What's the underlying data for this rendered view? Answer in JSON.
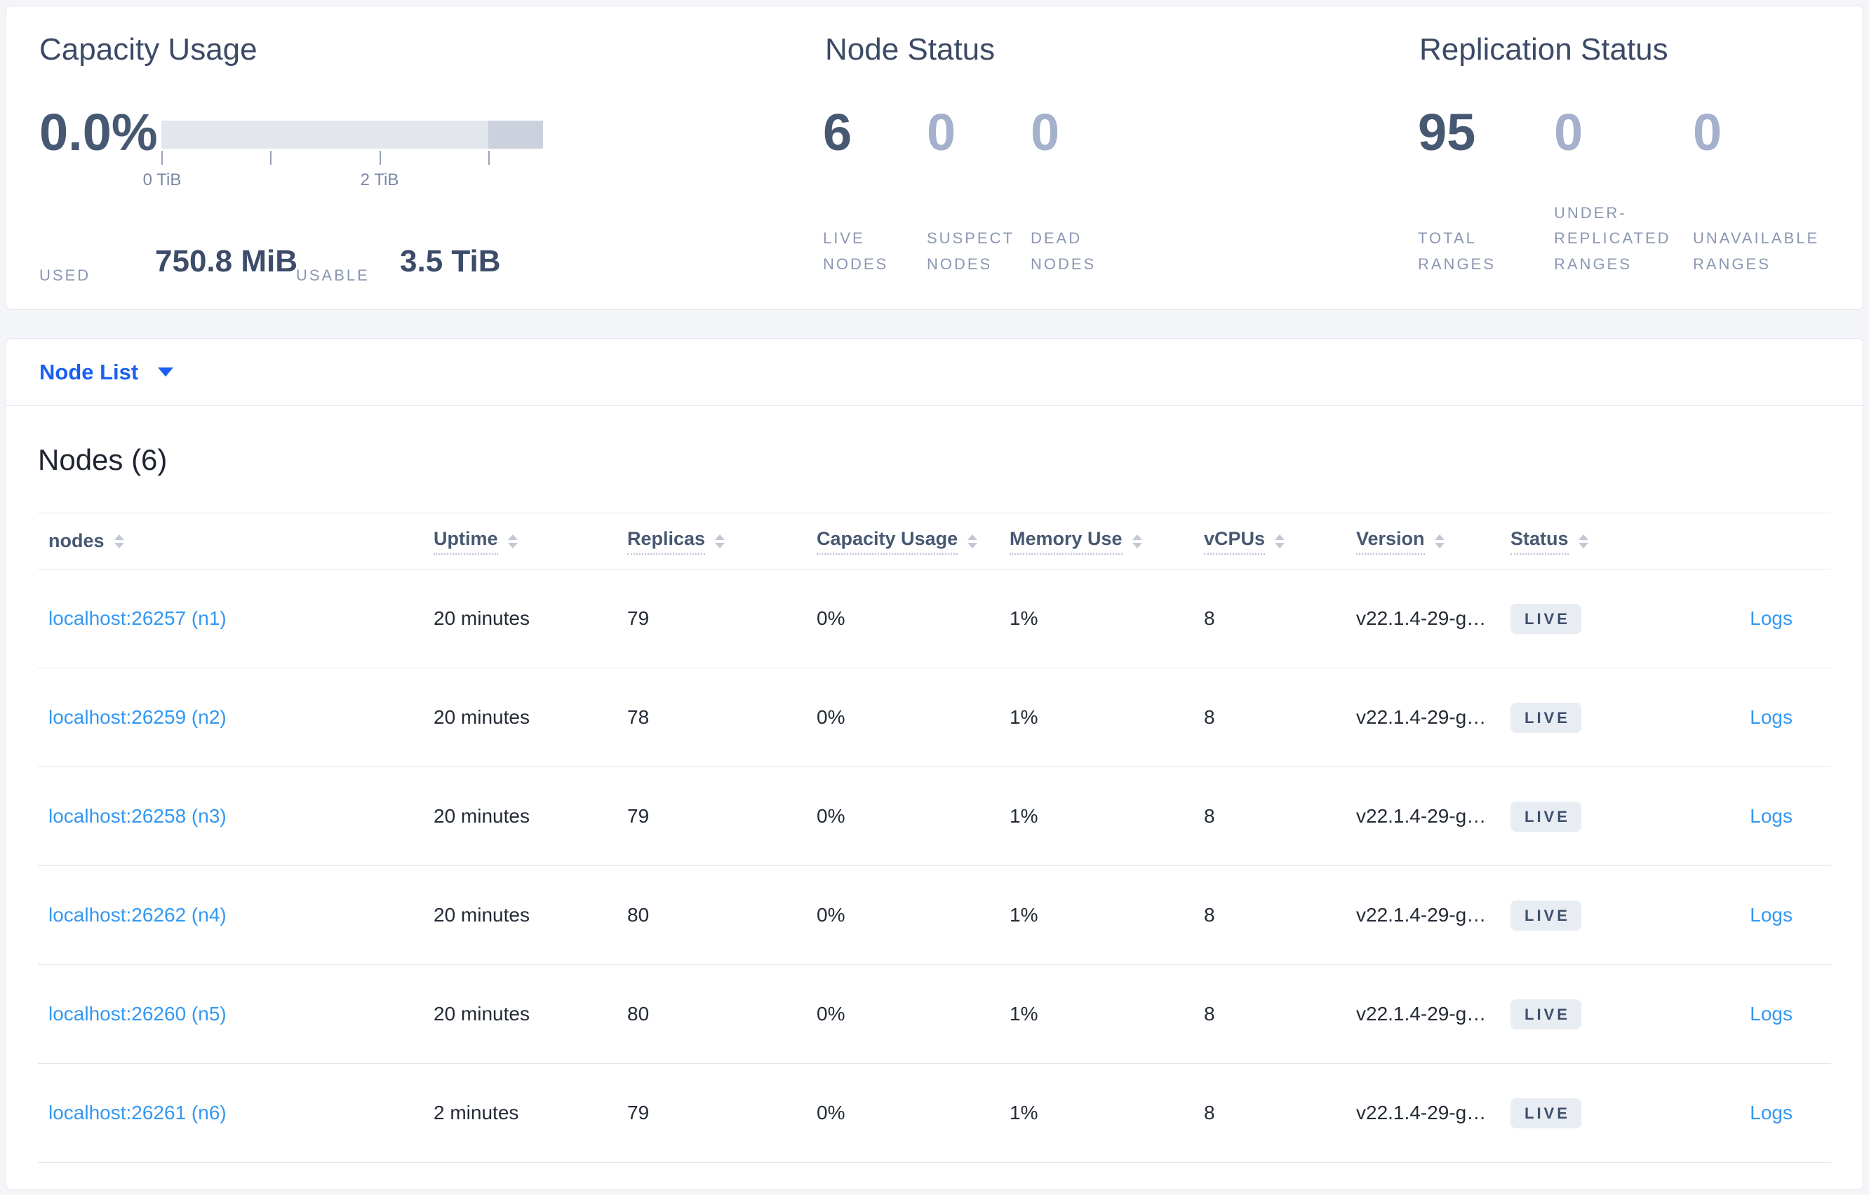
{
  "stats": {
    "capacity": {
      "title": "Capacity Usage",
      "percent": "0.0%",
      "tick_labels": [
        "0 TiB",
        "2 TiB"
      ],
      "used_label": "USED",
      "used_value": "750.8 MiB",
      "usable_label": "USABLE",
      "usable_value": "3.5 TiB"
    },
    "node_status": {
      "title": "Node Status",
      "metrics": [
        {
          "value": "6",
          "label": "LIVE NODES",
          "dim": false
        },
        {
          "value": "0",
          "label": "SUSPECT NODES",
          "dim": true
        },
        {
          "value": "0",
          "label": "DEAD NODES",
          "dim": true
        }
      ]
    },
    "replication": {
      "title": "Replication Status",
      "metrics": [
        {
          "value": "95",
          "label": "TOTAL RANGES",
          "dim": false
        },
        {
          "value": "0",
          "label": "UNDER-REPLICATED RANGES",
          "dim": true
        },
        {
          "value": "0",
          "label": "UNAVAILABLE RANGES",
          "dim": true
        }
      ]
    }
  },
  "view_selector": {
    "label": "Node List"
  },
  "nodes": {
    "title": "Nodes (6)",
    "columns": [
      {
        "label": "nodes",
        "tooltip": false
      },
      {
        "label": "Uptime",
        "tooltip": true
      },
      {
        "label": "Replicas",
        "tooltip": true
      },
      {
        "label": "Capacity Usage",
        "tooltip": true
      },
      {
        "label": "Memory Use",
        "tooltip": true
      },
      {
        "label": "vCPUs",
        "tooltip": true
      },
      {
        "label": "Version",
        "tooltip": true
      },
      {
        "label": "Status",
        "tooltip": true
      }
    ],
    "logs_label": "Logs",
    "rows": [
      {
        "node": "localhost:26257 (n1)",
        "uptime": "20 minutes",
        "replicas": "79",
        "capacity": "0%",
        "memory": "1%",
        "vcpus": "8",
        "version": "v22.1.4-29-g…",
        "status": "LIVE"
      },
      {
        "node": "localhost:26259 (n2)",
        "uptime": "20 minutes",
        "replicas": "78",
        "capacity": "0%",
        "memory": "1%",
        "vcpus": "8",
        "version": "v22.1.4-29-g…",
        "status": "LIVE"
      },
      {
        "node": "localhost:26258 (n3)",
        "uptime": "20 minutes",
        "replicas": "79",
        "capacity": "0%",
        "memory": "1%",
        "vcpus": "8",
        "version": "v22.1.4-29-g…",
        "status": "LIVE"
      },
      {
        "node": "localhost:26262 (n4)",
        "uptime": "20 minutes",
        "replicas": "80",
        "capacity": "0%",
        "memory": "1%",
        "vcpus": "8",
        "version": "v22.1.4-29-g…",
        "status": "LIVE"
      },
      {
        "node": "localhost:26260 (n5)",
        "uptime": "20 minutes",
        "replicas": "80",
        "capacity": "0%",
        "memory": "1%",
        "vcpus": "8",
        "version": "v22.1.4-29-g…",
        "status": "LIVE"
      },
      {
        "node": "localhost:26261 (n6)",
        "uptime": "2 minutes",
        "replicas": "79",
        "capacity": "0%",
        "memory": "1%",
        "vcpus": "8",
        "version": "v22.1.4-29-g…",
        "status": "LIVE"
      }
    ]
  },
  "colors": {
    "page_background": "#f4f5f9",
    "panel_border": "#e5e7ee",
    "title_slate": "#3c4a66",
    "value_dark": "#475872",
    "value_dim": "#a5b0cc",
    "label_gray": "#8b97b2",
    "selector_blue": "#1a5ff2",
    "link_blue": "#3398f2",
    "badge_background": "#e8ecf3",
    "badge_text": "#3e4f6d",
    "bar_light": "#e4e6ee",
    "bar_dark": "#ccd1de"
  }
}
